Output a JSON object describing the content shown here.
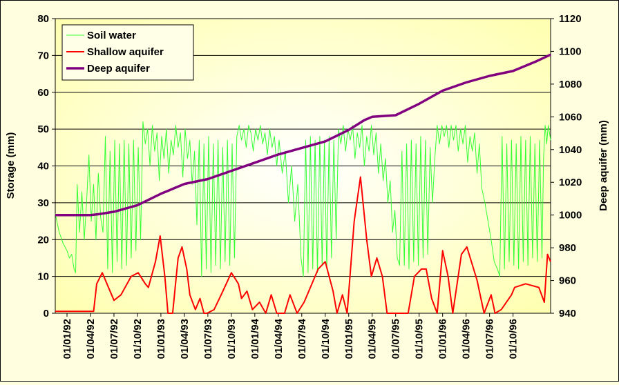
{
  "chart_data": {
    "type": "line",
    "ylabel": "Storage (mm)",
    "y2label": "Deep aquifer (mm)",
    "xlim": [
      -1.5,
      61.8
    ],
    "xticks": [
      {
        "value": 0,
        "label": "01/01/92"
      },
      {
        "value": 3,
        "label": "01/04/92"
      },
      {
        "value": 6,
        "label": "01/07/92"
      },
      {
        "value": 9,
        "label": "01/10/92"
      },
      {
        "value": 12,
        "label": "01/01/93"
      },
      {
        "value": 15,
        "label": "01/04/93"
      },
      {
        "value": 18,
        "label": "01/07/93"
      },
      {
        "value": 21,
        "label": "01/10/93"
      },
      {
        "value": 24,
        "label": "01/01/94"
      },
      {
        "value": 27,
        "label": "01/04/94"
      },
      {
        "value": 30,
        "label": "01/07/94"
      },
      {
        "value": 33,
        "label": "01/10/94"
      },
      {
        "value": 36,
        "label": "01/01/95"
      },
      {
        "value": 39,
        "label": "01/04/95"
      },
      {
        "value": 42,
        "label": "01/07/95"
      },
      {
        "value": 45,
        "label": "01/10/95"
      },
      {
        "value": 48,
        "label": "01/01/96"
      },
      {
        "value": 51,
        "label": "01/04/96"
      },
      {
        "value": 54,
        "label": "01/07/96"
      },
      {
        "value": 57,
        "label": "01/10/96"
      }
    ],
    "ylim": [
      0,
      80
    ],
    "yticks": [
      0,
      10,
      20,
      30,
      40,
      50,
      60,
      70,
      80
    ],
    "y2lim": [
      940,
      1120
    ],
    "y2ticks": [
      940,
      960,
      980,
      1000,
      1020,
      1040,
      1060,
      1080,
      1100,
      1120
    ],
    "grid": true,
    "legend": "upper left",
    "series": [
      {
        "name": "Soil water",
        "color": "#33ff33",
        "width": 1,
        "axis": "y",
        "x": [
          -1.5,
          -1,
          -0.5,
          0,
          0.3,
          0.6,
          0.9,
          1.1,
          1.3,
          1.6,
          1.9,
          2.2,
          2.5,
          2.8,
          3.1,
          3.4,
          3.7,
          4.0,
          4.3,
          4.6,
          4.9,
          5.2,
          5.5,
          5.8,
          6.1,
          6.4,
          6.7,
          7.0,
          7.3,
          7.6,
          7.9,
          8.2,
          8.5,
          8.8,
          9.1,
          9.4,
          9.7,
          10.0,
          10.3,
          10.6,
          10.9,
          11.2,
          11.5,
          11.8,
          12.1,
          12.4,
          12.7,
          13.0,
          13.3,
          13.6,
          13.9,
          14.2,
          14.5,
          14.8,
          15.1,
          15.4,
          15.7,
          16.0,
          16.3,
          16.6,
          16.9,
          17.2,
          17.5,
          17.8,
          18.1,
          18.4,
          18.7,
          19.0,
          19.3,
          19.6,
          19.9,
          20.2,
          20.5,
          20.8,
          21.1,
          21.4,
          21.7,
          22.0,
          22.3,
          22.6,
          22.9,
          23.2,
          23.5,
          23.8,
          24.1,
          24.4,
          24.7,
          25.0,
          25.3,
          25.6,
          25.9,
          26.2,
          26.5,
          26.8,
          27.1,
          27.5,
          27.9,
          28.3,
          28.7,
          29.1,
          29.5,
          29.9,
          30.2,
          30.5,
          30.8,
          31.1,
          31.4,
          31.7,
          32.0,
          32.3,
          32.6,
          32.9,
          33.2,
          33.5,
          33.8,
          34.1,
          34.4,
          34.7,
          35.0,
          35.3,
          35.6,
          35.9,
          36.2,
          36.5,
          36.8,
          37.1,
          37.4,
          37.7,
          38.0,
          38.3,
          38.6,
          38.9,
          39.2,
          39.5,
          39.8,
          40.1,
          40.4,
          40.7,
          41.0,
          41.3,
          41.6,
          41.9,
          42.2,
          42.5,
          42.8,
          43.1,
          43.4,
          43.7,
          44.0,
          44.3,
          44.6,
          44.9,
          45.2,
          45.5,
          45.8,
          46.1,
          46.4,
          46.7,
          47.0,
          47.3,
          47.6,
          47.9,
          48.2,
          48.5,
          48.8,
          49.1,
          49.4,
          49.7,
          50.0,
          50.3,
          50.6,
          50.9,
          51.2,
          51.5,
          51.8,
          52.1,
          52.4,
          52.7,
          53.0,
          53.4,
          53.8,
          54.2,
          54.6,
          55.0,
          55.3,
          55.6,
          55.9,
          56.2,
          56.5,
          56.8,
          57.1,
          57.4,
          57.7,
          58.0,
          58.3,
          58.6,
          58.9,
          59.2,
          59.5,
          59.8,
          60.1,
          60.4,
          60.7,
          60.9,
          61.1,
          61.3,
          61.5,
          61.8
        ],
        "values": [
          27,
          22,
          19,
          17,
          15,
          16,
          12,
          11,
          35,
          22,
          33,
          20,
          30,
          43,
          25,
          35,
          20,
          38,
          26,
          22,
          48,
          12,
          44,
          11,
          47,
          14,
          46,
          12,
          47,
          13,
          46,
          15,
          47,
          17,
          45,
          20,
          52,
          46,
          50,
          40,
          51,
          44,
          49,
          36,
          48,
          42,
          50,
          38,
          47,
          43,
          51,
          45,
          49,
          37,
          50,
          42,
          47,
          35,
          44,
          24,
          47,
          10,
          46,
          12,
          48,
          11,
          46,
          13,
          47,
          12,
          45,
          14,
          47,
          13,
          46,
          15,
          48,
          51,
          47,
          50,
          45,
          51,
          49,
          44,
          50,
          47,
          51,
          46,
          49,
          43,
          50,
          45,
          48,
          40,
          47,
          38,
          44,
          30,
          40,
          25,
          35,
          15,
          10,
          47,
          11,
          48,
          12,
          47,
          11,
          48,
          13,
          47,
          12,
          48,
          15,
          47,
          20,
          50,
          46,
          51,
          44,
          50,
          47,
          51,
          42,
          49,
          45,
          51,
          40,
          48,
          44,
          51,
          43,
          49,
          38,
          46,
          36,
          42,
          30,
          36,
          22,
          28,
          15,
          13,
          44,
          13,
          46,
          12,
          47,
          14,
          46,
          13,
          48,
          15,
          47,
          16,
          45,
          30,
          42,
          51,
          46,
          51,
          48,
          51,
          45,
          51,
          47,
          51,
          44,
          50,
          46,
          51,
          41,
          48,
          44,
          49,
          38,
          46,
          34,
          30,
          25,
          20,
          14,
          12,
          10,
          48,
          12,
          46,
          14,
          47,
          13,
          46,
          12,
          48,
          14,
          47,
          13,
          48,
          15,
          46,
          14,
          47,
          15,
          42,
          51,
          46,
          51,
          47
        ]
      },
      {
        "name": "Shallow aquifer",
        "color": "#ff0000",
        "width": 2,
        "axis": "y",
        "x": [
          -1.5,
          3.4,
          3.8,
          4.5,
          5.1,
          6.0,
          6.9,
          8.2,
          9.1,
          10.0,
          10.4,
          11.3,
          11.9,
          12.5,
          12.9,
          13.5,
          14.2,
          14.7,
          15.3,
          15.7,
          16.4,
          17.0,
          17.5,
          17.9,
          18.8,
          19.7,
          21.0,
          21.9,
          22.3,
          23.0,
          23.7,
          24.6,
          25.4,
          26.1,
          26.8,
          27.8,
          28.5,
          29.4,
          30.3,
          32.1,
          33.0,
          34.0,
          34.5,
          35.2,
          35.8,
          36.7,
          37.5,
          38.3,
          38.9,
          39.6,
          40.3,
          40.9,
          43.6,
          44.4,
          45.3,
          45.9,
          46.6,
          47.3,
          48.0,
          48.7,
          49.3,
          50.4,
          51.1,
          52.4,
          53.3,
          54.2,
          54.7,
          55.5,
          56.8,
          57.2,
          58.6,
          60.3,
          61.0,
          61.4,
          61.8
        ],
        "values": [
          0.5,
          0.5,
          8,
          11,
          8,
          3.5,
          5,
          10,
          11,
          8,
          7,
          14,
          21,
          10,
          0,
          0,
          15,
          18,
          12,
          5,
          1,
          4,
          0,
          0,
          1,
          5,
          11,
          8,
          4,
          6,
          1,
          3,
          0,
          5,
          0,
          0,
          5,
          0,
          3,
          12,
          14,
          6,
          0,
          5,
          0,
          25,
          37,
          20,
          10,
          15,
          10,
          0,
          0,
          10,
          12,
          12,
          4,
          0,
          17,
          10,
          0,
          16,
          18,
          9,
          0,
          5,
          0,
          1,
          5,
          7,
          8,
          7,
          3,
          16,
          14
        ]
      },
      {
        "name": "Deep aquifer",
        "color": "#800080",
        "width": 3.5,
        "axis": "y2",
        "x": [
          -1.5,
          0,
          3,
          4,
          6,
          9,
          12,
          13,
          15,
          18,
          21,
          24,
          27,
          30,
          33,
          36,
          38,
          39,
          42,
          45,
          48,
          51,
          54,
          57,
          60,
          61.8
        ],
        "values": [
          1000,
          1000,
          1000,
          1000.5,
          1002,
          1006,
          1013,
          1015,
          1019,
          1022,
          1027,
          1032,
          1037,
          1041,
          1045,
          1052,
          1058,
          1060,
          1061,
          1068,
          1076,
          1081,
          1085,
          1088,
          1094,
          1098
        ]
      }
    ]
  }
}
